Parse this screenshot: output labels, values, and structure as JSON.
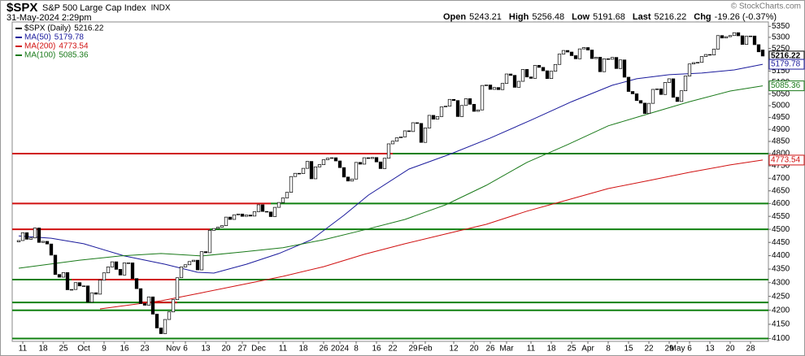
{
  "header": {
    "symbol": "$SPX",
    "name": "S&P 500 Large Cap Index",
    "exchange": "INDX",
    "date": "31-May-2024 2:29pm",
    "credit": "© StockCharts.com",
    "stats": [
      {
        "label": "Open",
        "value": 5243.21
      },
      {
        "label": "High",
        "value": 5256.48
      },
      {
        "label": "Low",
        "value": 5191.68
      },
      {
        "label": "Last",
        "value": 5216.22
      },
      {
        "label": "Chg",
        "value": "-19.26 (-0.37%)"
      }
    ]
  },
  "chart_data": {
    "type": "candlestick",
    "name": "$SPX (Daily)",
    "up_color": "#ffffff",
    "down_color": "#000000",
    "log_scale": true,
    "grid": false,
    "xlim": [
      -1.6,
      184.4
    ],
    "ylim": [
      4090,
      5370
    ],
    "yticks": [
      4100,
      4150,
      4200,
      4250,
      4300,
      4350,
      4400,
      4450,
      4500,
      4550,
      4600,
      4650,
      4700,
      4750,
      4800,
      4850,
      4900,
      4950,
      5000,
      5050,
      5100,
      5150,
      5200,
      5250,
      5300,
      5350
    ],
    "xticks": [
      {
        "value": 1,
        "label": "11"
      },
      {
        "value": 6,
        "label": "18"
      },
      {
        "value": 11,
        "label": "25"
      },
      {
        "value": 16,
        "label": "Oct"
      },
      {
        "value": 21,
        "label": "9"
      },
      {
        "value": 26,
        "label": "16"
      },
      {
        "value": 31,
        "label": "23"
      },
      {
        "value": 38,
        "label": "Nov"
      },
      {
        "value": 41,
        "label": "6"
      },
      {
        "value": 46,
        "label": "13"
      },
      {
        "value": 51,
        "label": "20"
      },
      {
        "value": 55,
        "label": "27"
      },
      {
        "value": 59,
        "label": "Dec"
      },
      {
        "value": 65,
        "label": "11"
      },
      {
        "value": 70,
        "label": "18"
      },
      {
        "value": 75,
        "label": "26"
      },
      {
        "value": 79,
        "label": "2024"
      },
      {
        "value": 83,
        "label": "8"
      },
      {
        "value": 88,
        "label": "16"
      },
      {
        "value": 92,
        "label": "22"
      },
      {
        "value": 97,
        "label": "29"
      },
      {
        "value": 100,
        "label": "Feb"
      },
      {
        "value": 107,
        "label": "12"
      },
      {
        "value": 112,
        "label": "20"
      },
      {
        "value": 116,
        "label": "26"
      },
      {
        "value": 120,
        "label": "Mar"
      },
      {
        "value": 126,
        "label": "11"
      },
      {
        "value": 131,
        "label": "18"
      },
      {
        "value": 136,
        "label": "25"
      },
      {
        "value": 140,
        "label": "Apr"
      },
      {
        "value": 145,
        "label": "8"
      },
      {
        "value": 150,
        "label": "15"
      },
      {
        "value": 155,
        "label": "22"
      },
      {
        "value": 160,
        "label": "29"
      },
      {
        "value": 162,
        "label": "May"
      },
      {
        "value": 165,
        "label": "6"
      },
      {
        "value": 170,
        "label": "13"
      },
      {
        "value": 175,
        "label": "20"
      },
      {
        "value": 180,
        "label": "28"
      }
    ],
    "open": [
      4452,
      4457,
      4487,
      4462,
      4467,
      4505,
      4450,
      4454,
      4444,
      4402,
      4330,
      4320,
      4337,
      4274,
      4275,
      4300,
      4288,
      4288,
      4229,
      4263,
      4258,
      4309,
      4336,
      4358,
      4377,
      4349,
      4328,
      4373,
      4373,
      4315,
      4278,
      4224,
      4218,
      4248,
      4186,
      4137,
      4117,
      4167,
      4194,
      4238,
      4318,
      4358,
      4366,
      4378,
      4383,
      4347,
      4415,
      4411,
      4496,
      4503,
      4508,
      4514,
      4547,
      4538,
      4556,
      4559,
      4550,
      4555,
      4551,
      4568,
      4595,
      4569,
      4567,
      4549,
      4585,
      4604,
      4622,
      4644,
      4707,
      4720,
      4719,
      4740,
      4768,
      4698,
      4746,
      4755,
      4775,
      4781,
      4783,
      4770,
      4743,
      4705,
      4689,
      4697,
      4764,
      4757,
      4783,
      4780,
      4784,
      4766,
      4739,
      4781,
      4840,
      4851,
      4865,
      4869,
      4894,
      4891,
      4928,
      4925,
      4846,
      4906,
      4959,
      4943,
      4954,
      4995,
      4998,
      5027,
      5022,
      4954,
      5001,
      5030,
      5006,
      4976,
      4982,
      5087,
      5089,
      5070,
      5078,
      5069,
      5096,
      5137,
      5131,
      5079,
      5105,
      5157,
      5124,
      5118,
      5175,
      5166,
      5151,
      5117,
      5149,
      5179,
      5225,
      5241,
      5234,
      5218,
      5204,
      5248,
      5254,
      5243,
      5205,
      5211,
      5147,
      5204,
      5202,
      5210,
      5161,
      5199,
      5123,
      5061,
      5051,
      5022,
      5011,
      4967,
      5010,
      5070,
      5072,
      5048,
      5100,
      5116,
      5036,
      5018,
      5064,
      5128,
      5181,
      5187,
      5188,
      5214,
      5223,
      5221,
      5247,
      5308,
      5297,
      5303,
      5308,
      5321,
      5307,
      5268,
      5305,
      5306,
      5267,
      5243.21
    ],
    "close": [
      4457,
      4487,
      4462,
      4467,
      4505,
      4450,
      4454,
      4444,
      4402,
      4330,
      4320,
      4337,
      4274,
      4275,
      4300,
      4288,
      4288,
      4229,
      4263,
      4258,
      4309,
      4336,
      4358,
      4377,
      4349,
      4328,
      4373,
      4373,
      4315,
      4278,
      4224,
      4218,
      4248,
      4186,
      4137,
      4117,
      4167,
      4194,
      4238,
      4318,
      4358,
      4366,
      4378,
      4383,
      4347,
      4415,
      4411,
      4496,
      4503,
      4508,
      4514,
      4547,
      4538,
      4556,
      4559,
      4550,
      4555,
      4551,
      4568,
      4595,
      4569,
      4567,
      4549,
      4585,
      4604,
      4622,
      4644,
      4707,
      4720,
      4719,
      4740,
      4768,
      4698,
      4746,
      4755,
      4775,
      4781,
      4783,
      4770,
      4743,
      4705,
      4689,
      4697,
      4764,
      4757,
      4783,
      4780,
      4784,
      4766,
      4739,
      4781,
      4840,
      4851,
      4865,
      4869,
      4894,
      4891,
      4928,
      4925,
      4846,
      4906,
      4959,
      4943,
      4954,
      4995,
      4998,
      5027,
      5022,
      4954,
      5001,
      5030,
      5006,
      4976,
      4982,
      5087,
      5089,
      5070,
      5078,
      5069,
      5096,
      5137,
      5131,
      5079,
      5105,
      5157,
      5124,
      5118,
      5175,
      5166,
      5151,
      5117,
      5149,
      5179,
      5225,
      5241,
      5234,
      5218,
      5204,
      5248,
      5254,
      5243,
      5205,
      5211,
      5147,
      5204,
      5202,
      5210,
      5161,
      5199,
      5123,
      5061,
      5051,
      5022,
      5011,
      4967,
      5010,
      5070,
      5072,
      5048,
      5100,
      5116,
      5036,
      5018,
      5064,
      5128,
      5181,
      5187,
      5188,
      5214,
      5223,
      5221,
      5247,
      5308,
      5297,
      5303,
      5308,
      5321,
      5307,
      5268,
      5305,
      5306,
      5267,
      5235,
      5216.22
    ],
    "lines": [
      {
        "name": "MA(50)",
        "color": "#1a1a9c",
        "x": [
          0,
          8,
          16,
          26,
          36,
          44,
          48,
          56,
          64,
          72,
          80,
          86,
          96,
          106,
          116,
          126,
          136,
          146,
          152,
          160,
          168,
          176,
          183
        ],
        "values": [
          4475,
          4466,
          4445,
          4399,
          4368,
          4338,
          4335,
          4368,
          4408,
          4460,
          4554,
          4633,
          4737,
          4797,
          4864,
          4939,
          5017,
          5088,
          5116,
          5134,
          5141,
          5155,
          5179.78
        ]
      },
      {
        "name": "MA(200)",
        "color": "#d01010",
        "x": [
          20,
          35,
          45,
          55,
          65,
          75,
          85,
          95,
          105,
          115,
          125,
          135,
          145,
          155,
          165,
          175,
          183
        ],
        "values": [
          4205,
          4234,
          4263,
          4293,
          4323,
          4359,
          4405,
          4445,
          4482,
          4519,
          4570,
          4614,
          4659,
          4691,
          4724,
          4754,
          4773.54
        ]
      },
      {
        "name": "MA(100)",
        "color": "#1a7a1a",
        "x": [
          0,
          15,
          25,
          35,
          45,
          55,
          65,
          75,
          85,
          95,
          105,
          115,
          125,
          135,
          145,
          155,
          165,
          175,
          183
        ],
        "values": [
          4353,
          4383,
          4399,
          4408,
          4399,
          4414,
          4430,
          4460,
          4498,
          4538,
          4595,
          4672,
          4764,
          4837,
          4915,
          4966,
          5017,
          5063,
          5085.36
        ]
      }
    ],
    "levels": [
      {
        "value": 4800,
        "color": "#d01010",
        "from": -1.6,
        "to": 92
      },
      {
        "value": 4800,
        "color": "#108010",
        "from": 92,
        "to": 184.4
      },
      {
        "value": 4600,
        "color": "#d01010",
        "from": -1.6,
        "to": 62
      },
      {
        "value": 4600,
        "color": "#108010",
        "from": 62,
        "to": 184.4
      },
      {
        "value": 4500,
        "color": "#d01010",
        "from": -1.6,
        "to": 47
      },
      {
        "value": 4500,
        "color": "#108010",
        "from": 47,
        "to": 184.4
      },
      {
        "value": 4311,
        "color": "#108010",
        "from": -1.6,
        "to": 184.4
      },
      {
        "value": 4311,
        "color": "#d01010",
        "from": 13,
        "to": 39
      },
      {
        "value": 4228,
        "color": "#108010",
        "from": -1.6,
        "to": 184.4
      },
      {
        "value": 4228,
        "color": "#d01010",
        "from": 30,
        "to": 39
      },
      {
        "value": 4200,
        "color": "#108010",
        "from": -1.6,
        "to": 184.4
      },
      {
        "value": 4100,
        "color": "#108010",
        "from": -1.6,
        "to": 184.4
      }
    ]
  }
}
